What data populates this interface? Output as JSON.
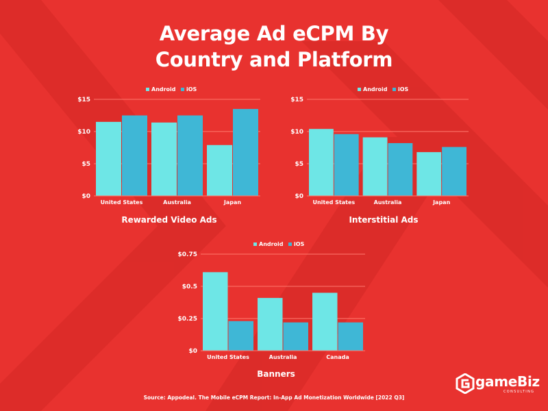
{
  "title_lines": [
    "Average Ad eCPM By",
    "Country and Platform"
  ],
  "source": "Source: Appodeal. The Mobile eCPM Report: In-App Ad Monetization Worldwide [2022 Q3]",
  "brand": {
    "name": "gameBiz",
    "sub": "CONSULTING",
    "icon": "game-biz-logo-icon"
  },
  "colors": {
    "background": "#e8322f",
    "background_stripes": "#d92b28",
    "android": "#6ee6e6",
    "ios": "#3fb7d6",
    "gridline": "#ff7a6e",
    "text": "#ffffff"
  },
  "chart_data": [
    {
      "type": "bar",
      "title": "Rewarded Video Ads",
      "categories": [
        "United States",
        "Australia",
        "Japan"
      ],
      "series": [
        {
          "name": "Android",
          "values": [
            11.5,
            11.4,
            7.9
          ]
        },
        {
          "name": "iOS",
          "values": [
            12.5,
            12.5,
            13.5
          ]
        }
      ],
      "ylim": [
        0,
        15
      ],
      "yticks": [
        "$0",
        "$5",
        "$10",
        "$15"
      ],
      "legend": "top",
      "grid": true
    },
    {
      "type": "bar",
      "title": "Interstitial Ads",
      "categories": [
        "United States",
        "Australia",
        "Japan"
      ],
      "series": [
        {
          "name": "Android",
          "values": [
            10.4,
            9.1,
            6.8
          ]
        },
        {
          "name": "iOS",
          "values": [
            9.6,
            8.2,
            7.6
          ]
        }
      ],
      "ylim": [
        0,
        15
      ],
      "yticks": [
        "$0",
        "$5",
        "$10",
        "$15"
      ],
      "legend": "top",
      "grid": true
    },
    {
      "type": "bar",
      "title": "Banners",
      "categories": [
        "United States",
        "Australia",
        "Canada"
      ],
      "series": [
        {
          "name": "Android",
          "values": [
            0.61,
            0.41,
            0.45
          ]
        },
        {
          "name": "iOS",
          "values": [
            0.23,
            0.22,
            0.22
          ]
        }
      ],
      "ylim": [
        0,
        0.75
      ],
      "yticks": [
        "$0",
        "$0.25",
        "$0.5",
        "$0.75"
      ],
      "legend": "top",
      "grid": true
    }
  ]
}
